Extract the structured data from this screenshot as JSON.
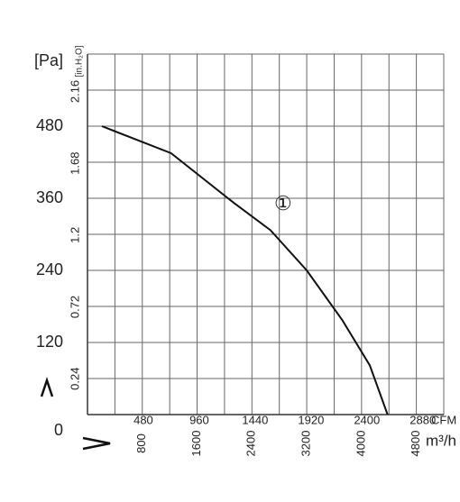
{
  "chart_data": {
    "type": "line",
    "y_label": "[Pa]",
    "y2_label": "[in.H₂O]",
    "x_label": "m³/h",
    "x2_label": "CFM",
    "xlim": [
      0,
      5200
    ],
    "xticks": [
      800,
      1600,
      2400,
      3200,
      4000,
      4800
    ],
    "x_minor_ticks": [
      0,
      400,
      1200,
      2000,
      2800,
      3600,
      4400,
      5200
    ],
    "x2lim": [
      0,
      3060
    ],
    "x2ticks": [
      480,
      960,
      1440,
      1920,
      2400,
      2880
    ],
    "ylim": [
      0,
      600
    ],
    "yticks": [
      0,
      120,
      240,
      360,
      480
    ],
    "y_minor_ticks": [
      60,
      180,
      300,
      420,
      540,
      600
    ],
    "y2lim": [
      0,
      2.41
    ],
    "y2ticks": [
      0.24,
      0.72,
      1.2,
      1.68,
      2.16
    ],
    "grid": true,
    "series": [
      {
        "name": "①",
        "color": "#111111",
        "x": [
          210,
          1220,
          2140,
          2670,
          3200,
          3720,
          4120,
          4380
        ],
        "values": [
          480,
          435,
          352,
          307,
          240,
          157,
          82,
          0
        ]
      }
    ]
  }
}
